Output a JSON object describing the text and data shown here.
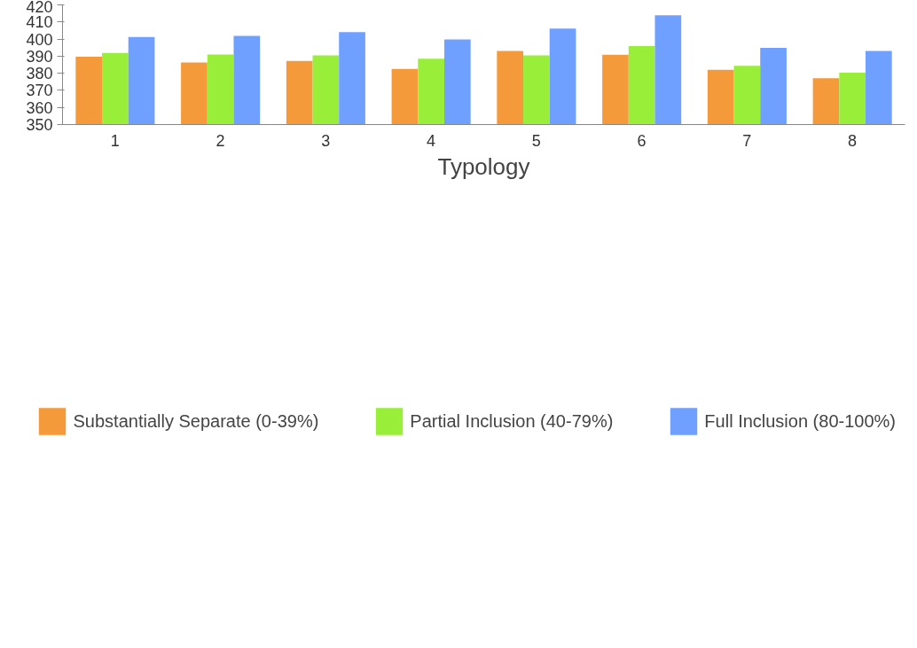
{
  "chart_data": {
    "type": "bar",
    "xlabel": "Typology",
    "categories": [
      "1",
      "2",
      "3",
      "4",
      "5",
      "6",
      "7",
      "8"
    ],
    "series": [
      {
        "name": "Substantially Separate (0-39%)",
        "color": "#f59a3a",
        "values": [
          389.7,
          386.3,
          387.2,
          382.6,
          393.0,
          390.8,
          382.0,
          377.1
        ]
      },
      {
        "name": "Partial Inclusion (40-79%)",
        "color": "#99ee3a",
        "values": [
          391.9,
          390.9,
          390.5,
          388.5,
          390.5,
          395.9,
          384.4,
          380.3
        ]
      },
      {
        "name": "Full Inclusion (80-100%)",
        "color": "#6fa0ff",
        "values": [
          401.2,
          401.9,
          404.1,
          399.8,
          406.1,
          413.9,
          394.9,
          393.1
        ]
      }
    ],
    "ylim": [
      350,
      420
    ],
    "yticks": [
      350,
      360,
      370,
      380,
      390,
      400,
      410,
      420
    ],
    "grid": false,
    "legend": "bottom"
  }
}
